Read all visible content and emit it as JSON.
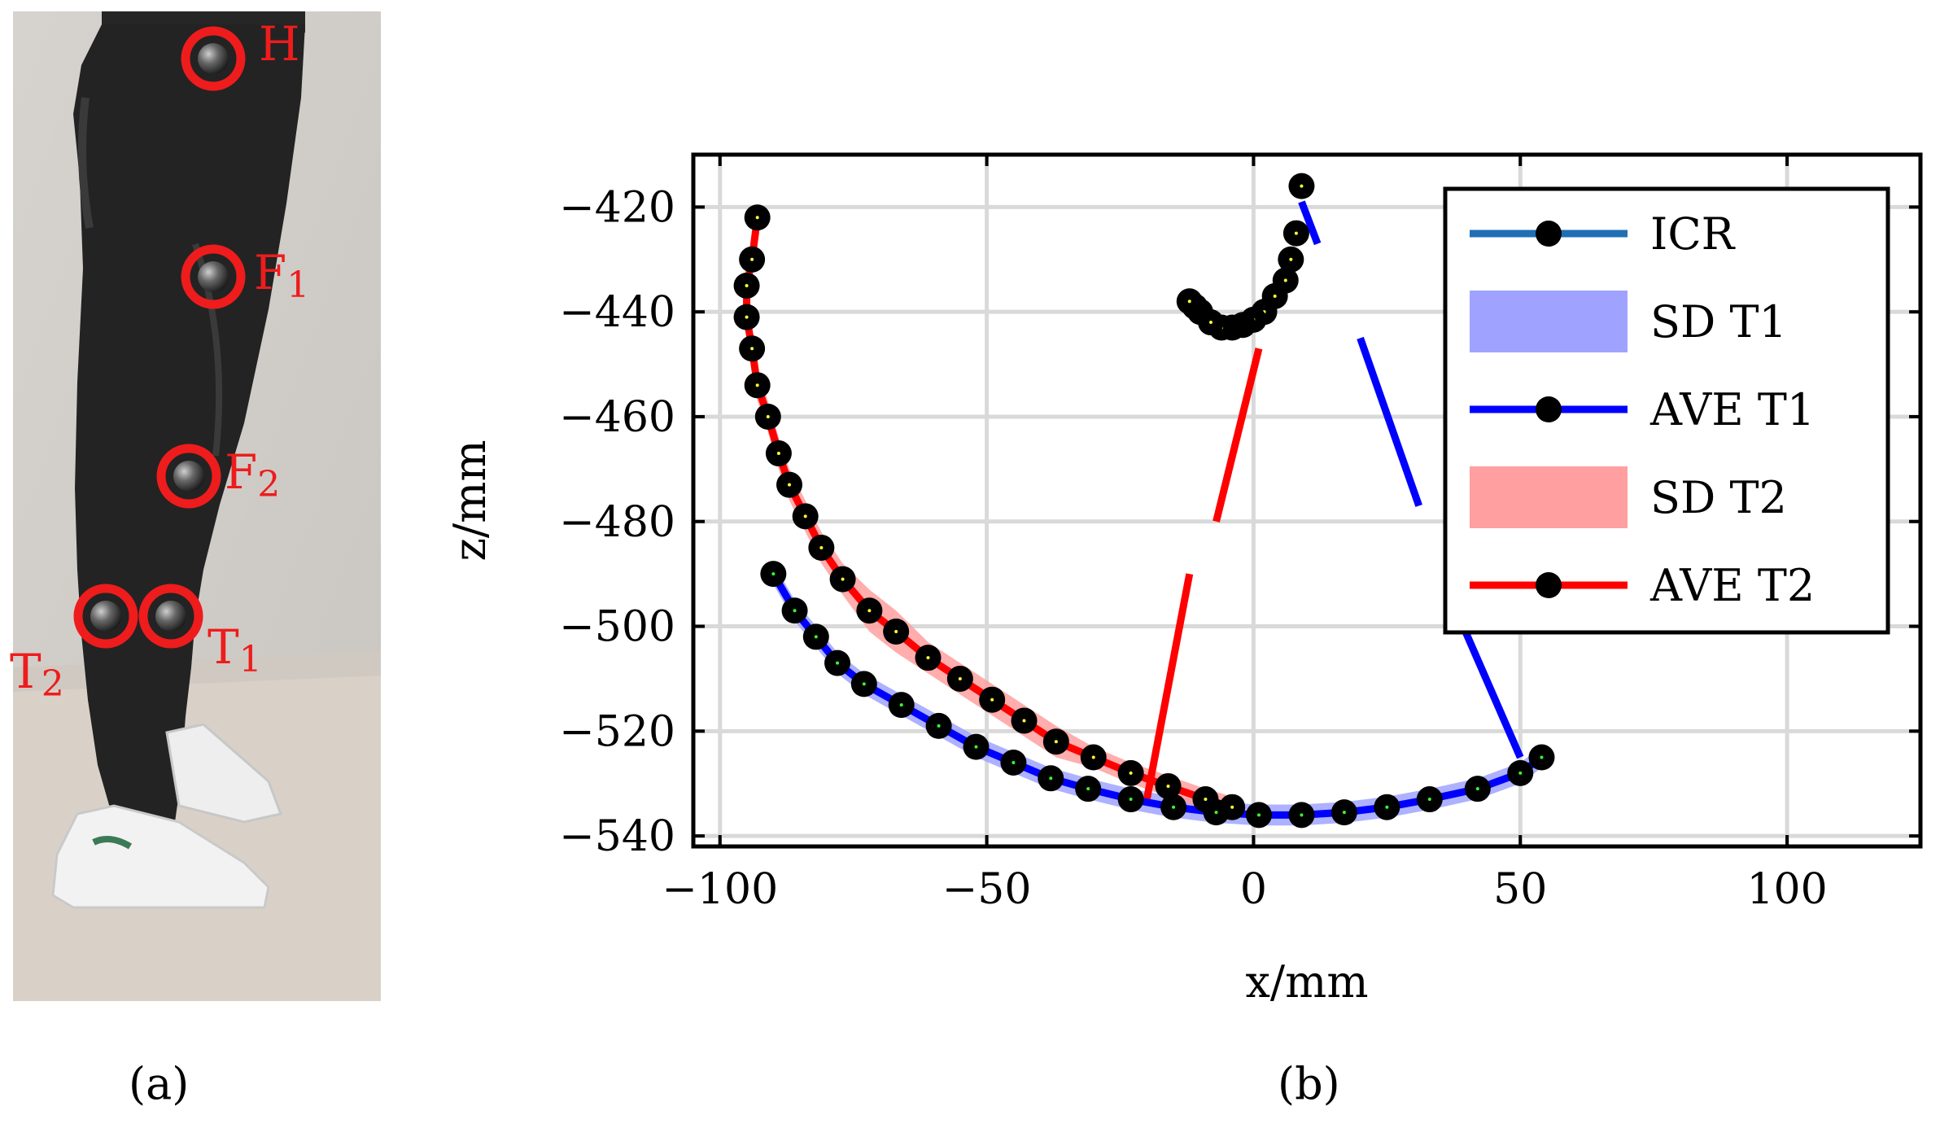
{
  "figure": {
    "panel_a_label": "(a)",
    "panel_b_label": "(b)"
  },
  "photo": {
    "markers": [
      {
        "id": "H",
        "text": "H",
        "sub": ""
      },
      {
        "id": "F1",
        "text": "F",
        "sub": "1"
      },
      {
        "id": "F2",
        "text": "F",
        "sub": "2"
      },
      {
        "id": "T1",
        "text": "T",
        "sub": "1"
      },
      {
        "id": "T2",
        "text": "T",
        "sub": "2"
      }
    ],
    "marker_color": "#ee1c1c"
  },
  "chart_data": {
    "type": "line",
    "xlabel": "x/mm",
    "ylabel": "z/mm",
    "xlim": [
      -105,
      125
    ],
    "ylim": [
      -542,
      -410
    ],
    "xticks": [
      -100,
      -50,
      0,
      50,
      100
    ],
    "xtick_labels": [
      "−100",
      "−50",
      "0",
      "50",
      "100"
    ],
    "yticks": [
      -540,
      -520,
      -500,
      -480,
      -460,
      -440,
      -420
    ],
    "ytick_labels": [
      "−540",
      "−520",
      "−500",
      "−480",
      "−460",
      "−440",
      "−420"
    ],
    "grid": true,
    "legend_position": "top-right",
    "legend": [
      {
        "label": "ICR",
        "kind": "line-marker",
        "color": "#1f6fb4"
      },
      {
        "label": "SD T1",
        "kind": "band",
        "color": "#9fa3ff"
      },
      {
        "label": "AVE T1",
        "kind": "line-marker",
        "color": "#0000ff"
      },
      {
        "label": "SD T2",
        "kind": "band",
        "color": "#ff9f9f"
      },
      {
        "label": "AVE T2",
        "kind": "line-marker",
        "color": "#ff0000"
      }
    ],
    "series": [
      {
        "name": "ICR",
        "color": "#000000",
        "x": [
          9,
          8,
          7,
          6,
          4,
          2,
          0,
          -2,
          -4,
          -6,
          -8,
          -10,
          -11,
          -12
        ],
        "y": [
          -416,
          -425,
          -430,
          -434,
          -437,
          -440,
          -441.5,
          -442.5,
          -443,
          -443,
          -442,
          -440,
          -439,
          -438
        ]
      },
      {
        "name": "AVE T1",
        "color": "#0000ff",
        "x": [
          -90,
          -86,
          -82,
          -78,
          -73,
          -66,
          -59,
          -52,
          -45,
          -38,
          -31,
          -23,
          -15,
          -7,
          1,
          9,
          17,
          25,
          33,
          42,
          50,
          54
        ],
        "y": [
          -490,
          -497,
          -502,
          -507,
          -511,
          -515,
          -519,
          -523,
          -526,
          -529,
          -531,
          -533,
          -534.5,
          -535.5,
          -536,
          -536,
          -535.5,
          -534.5,
          -533,
          -531,
          -528,
          -525
        ],
        "sd": [
          2,
          2,
          2,
          2,
          2,
          2,
          2,
          2,
          2,
          2,
          2,
          2,
          2,
          2,
          2,
          2,
          2,
          2,
          2,
          2,
          2,
          2
        ]
      },
      {
        "name": "AVE T2",
        "color": "#ff0000",
        "x": [
          -93,
          -94,
          -95,
          -95,
          -94,
          -93,
          -91,
          -89,
          -87,
          -84,
          -81,
          -77,
          -72,
          -67,
          -61,
          -55,
          -49,
          -43,
          -37,
          -30,
          -23,
          -16,
          -9,
          -4
        ],
        "y": [
          -422,
          -430,
          -435,
          -441,
          -447,
          -454,
          -460,
          -467,
          -473,
          -479,
          -485,
          -491,
          -497,
          -501,
          -506,
          -510,
          -514,
          -518,
          -522,
          -525,
          -528,
          -530.5,
          -533,
          -534.5
        ],
        "sd": [
          2,
          2,
          2,
          3,
          3,
          3,
          3,
          3,
          3,
          3,
          3,
          3,
          4,
          4,
          3,
          3,
          3,
          3,
          3,
          2,
          2,
          2,
          2,
          2
        ]
      }
    ],
    "connectors": [
      {
        "color": "#ff0000",
        "x": [
          -20,
          -12,
          -7,
          1,
          7
        ],
        "y": [
          -533,
          -490,
          -480,
          -447,
          -418
        ]
      },
      {
        "color": "#0000ff",
        "x": [
          9,
          12,
          20,
          31,
          38,
          50
        ],
        "y": [
          -419,
          -427,
          -445,
          -477,
          -497,
          -525
        ]
      }
    ]
  }
}
